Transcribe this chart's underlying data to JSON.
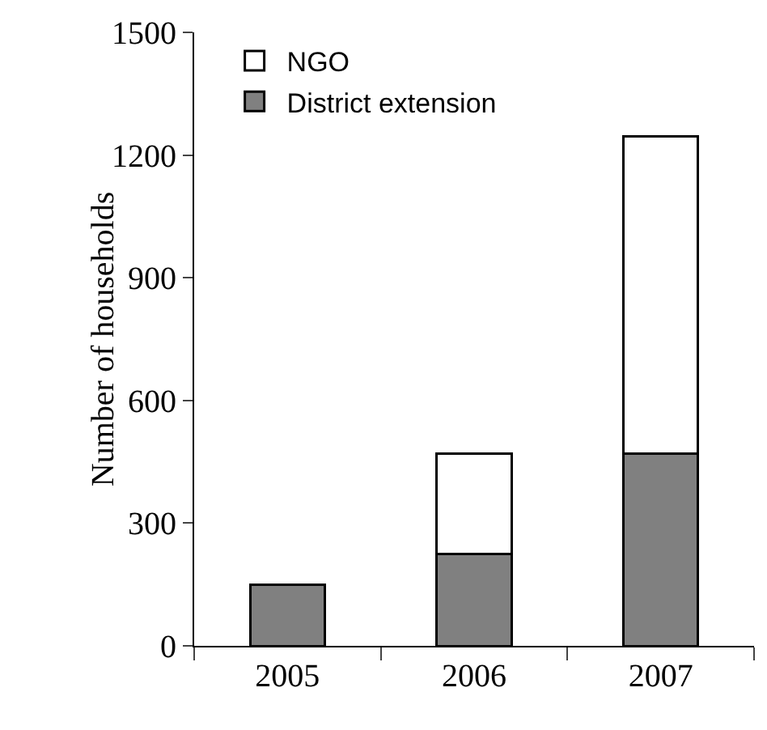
{
  "chart_data": {
    "type": "bar",
    "stacked": true,
    "ylabel": "Number of households",
    "categories": [
      "2005",
      "2006",
      "2007"
    ],
    "series": [
      {
        "name": "District extension",
        "color": "#808080",
        "values": [
          150,
          225,
          470
        ]
      },
      {
        "name": "NGO",
        "color": "#ffffff",
        "values": [
          null,
          245,
          775
        ]
      }
    ],
    "ylim": [
      0,
      1500
    ],
    "yticks": [
      0,
      300,
      600,
      900,
      1200,
      1500
    ],
    "grid": false,
    "legend": "top left"
  }
}
